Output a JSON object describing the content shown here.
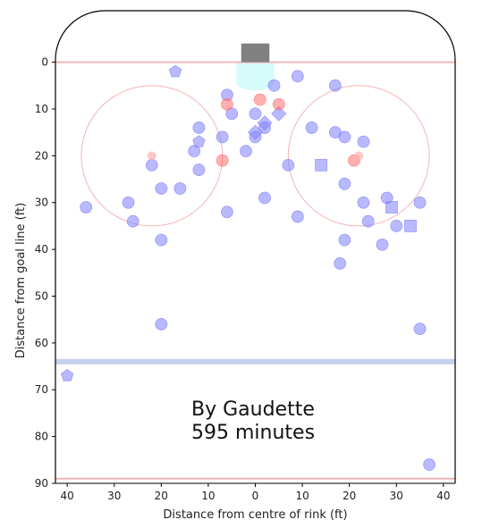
{
  "chart_data": {
    "type": "scatter",
    "title": "",
    "xlabel": "Distance from centre of rink (ft)",
    "ylabel": "Distance from goal line (ft)",
    "xlim": [
      -42.5,
      42.5
    ],
    "ylim": [
      90,
      -11
    ],
    "x_invert": true,
    "xticks": [
      40,
      30,
      20,
      10,
      0,
      10,
      20,
      30,
      40
    ],
    "xtick_positions": [
      -40,
      -30,
      -20,
      -10,
      0,
      10,
      20,
      30,
      40
    ],
    "yticks": [
      0,
      10,
      20,
      30,
      40,
      50,
      60,
      70,
      80,
      90
    ],
    "annotation": [
      "By Gaudette",
      "595 minutes"
    ],
    "colors": {
      "shots": "#7f7fff",
      "goals": "#ff6f6f",
      "goal_line": "#f2b6b6",
      "blue_line": "#c6d0ef",
      "crease": "#d6fbfb",
      "net": "#808080",
      "faceoff_circle": "#f4b4b4",
      "boards": "#000000"
    },
    "series": [
      {
        "marker": "circle",
        "color": "#7f7fff",
        "points": [
          [
            -22,
            22
          ],
          [
            -20,
            27
          ],
          [
            -16,
            27
          ],
          [
            -20,
            38
          ],
          [
            -27,
            30
          ],
          [
            -26,
            34
          ],
          [
            -36,
            31
          ],
          [
            -20,
            56
          ],
          [
            -12,
            14
          ],
          [
            -12,
            23
          ],
          [
            -13,
            19
          ],
          [
            -6,
            7
          ],
          [
            -5,
            11
          ],
          [
            -7,
            16
          ],
          [
            -6,
            32
          ],
          [
            -2,
            19
          ],
          [
            0,
            11
          ],
          [
            0,
            16
          ],
          [
            2,
            14
          ],
          [
            2,
            29
          ],
          [
            4,
            5
          ],
          [
            7,
            22
          ],
          [
            9,
            3
          ],
          [
            9,
            33
          ],
          [
            12,
            14
          ],
          [
            17,
            5
          ],
          [
            17,
            15
          ],
          [
            19,
            16
          ],
          [
            23,
            17
          ],
          [
            19,
            26
          ],
          [
            23,
            30
          ],
          [
            24,
            34
          ],
          [
            19,
            38
          ],
          [
            18,
            43
          ],
          [
            28,
            29
          ],
          [
            27,
            39
          ],
          [
            30,
            35
          ],
          [
            35,
            30
          ],
          [
            35,
            57
          ],
          [
            37,
            86
          ]
        ]
      },
      {
        "marker": "square",
        "color": "#7f7fff",
        "points": [
          [
            14,
            22
          ],
          [
            29,
            31
          ],
          [
            33,
            35
          ]
        ]
      },
      {
        "marker": "diamond",
        "color": "#7f7fff",
        "points": [
          [
            2,
            13
          ],
          [
            5,
            11
          ],
          [
            0,
            15
          ]
        ]
      },
      {
        "marker": "pentagon",
        "color": "#7f7fff",
        "points": [
          [
            -17,
            2
          ],
          [
            -12,
            17
          ],
          [
            -40,
            67
          ]
        ]
      },
      {
        "marker": "circle",
        "color": "#ff6f6f",
        "points": [
          [
            1,
            8
          ],
          [
            -6,
            9
          ],
          [
            5,
            9
          ],
          [
            -7,
            21
          ],
          [
            21,
            21
          ]
        ]
      },
      {
        "marker": "circle-small",
        "color": "#ffb0b0",
        "points": [
          [
            -22,
            20
          ],
          [
            22,
            20
          ]
        ]
      }
    ]
  }
}
